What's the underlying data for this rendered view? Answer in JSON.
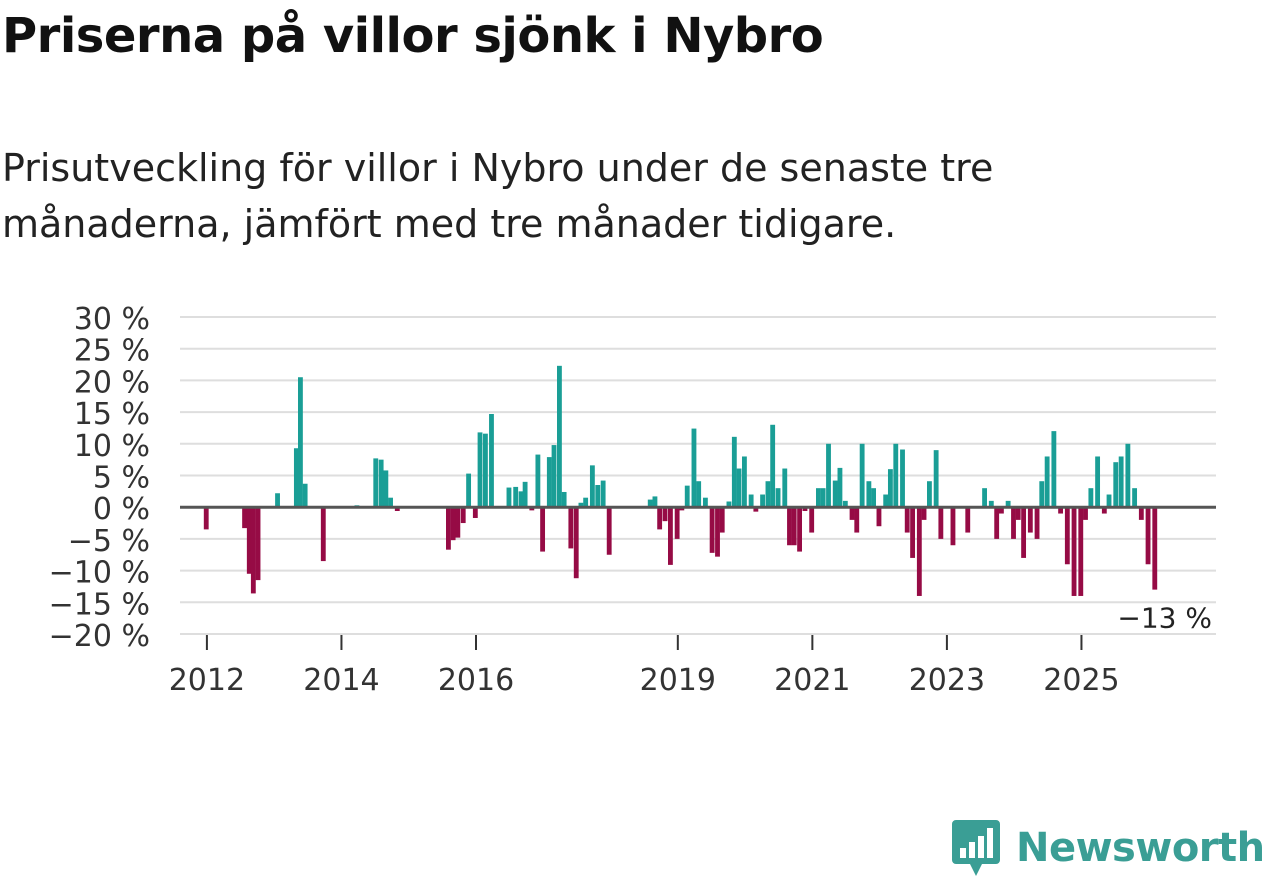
{
  "title": "Priserna på villor sjönk i Nybro",
  "subtitle": "Prisutveckling för villor i Nybro under de senaste tre månaderna, jämfört med tre månader tidigare.",
  "brand": {
    "name": "Newsworthy",
    "color": "#3a9e95",
    "icon": "newsworthy-bar-chart-icon"
  },
  "colors": {
    "positive": "#1a9e96",
    "negative": "#960b45",
    "grid": "#dedede",
    "zero_line": "#555555"
  },
  "chart_data": {
    "type": "bar",
    "title": "Priserna på villor sjönk i Nybro",
    "xlabel": "",
    "ylabel": "",
    "ylim": [
      -20,
      30
    ],
    "yticks": [
      {
        "value": 30,
        "label": "30 %"
      },
      {
        "value": 25,
        "label": "25 %"
      },
      {
        "value": 20,
        "label": "20 %"
      },
      {
        "value": 15,
        "label": "15 %"
      },
      {
        "value": 10,
        "label": "10 %"
      },
      {
        "value": 5,
        "label": "5 %"
      },
      {
        "value": 0,
        "label": "0 %"
      },
      {
        "value": -5,
        "label": "−5 %"
      },
      {
        "value": -10,
        "label": "−10 %"
      },
      {
        "value": -15,
        "label": "−15 %"
      },
      {
        "value": -20,
        "label": "−20 %"
      }
    ],
    "xlim": [
      2011.6,
      2027.0
    ],
    "xticks": [
      {
        "value": 2012.0,
        "label": "2012"
      },
      {
        "value": 2014.0,
        "label": "2014"
      },
      {
        "value": 2016.0,
        "label": "2016"
      },
      {
        "value": 2019.0,
        "label": "2019"
      },
      {
        "value": 2021.0,
        "label": "2021"
      },
      {
        "value": 2023.0,
        "label": "2023"
      },
      {
        "value": 2025.0,
        "label": "2025"
      }
    ],
    "bar_width_years": 0.072,
    "end_label": "−13 %",
    "series": [
      {
        "name": "Prisutveckling",
        "points": [
          {
            "x": 2011.99,
            "y": -3.5
          },
          {
            "x": 2012.56,
            "y": -3.3
          },
          {
            "x": 2012.63,
            "y": -10.5
          },
          {
            "x": 2012.69,
            "y": -13.6
          },
          {
            "x": 2012.76,
            "y": -11.5
          },
          {
            "x": 2013.05,
            "y": 2.2
          },
          {
            "x": 2013.33,
            "y": 9.3
          },
          {
            "x": 2013.39,
            "y": 20.5
          },
          {
            "x": 2013.46,
            "y": 3.7
          },
          {
            "x": 2013.73,
            "y": -8.5
          },
          {
            "x": 2014.23,
            "y": 0.3
          },
          {
            "x": 2014.51,
            "y": 7.7
          },
          {
            "x": 2014.59,
            "y": 7.5
          },
          {
            "x": 2014.66,
            "y": 5.8
          },
          {
            "x": 2014.73,
            "y": 1.5
          },
          {
            "x": 2014.83,
            "y": -0.6
          },
          {
            "x": 2015.59,
            "y": -6.7
          },
          {
            "x": 2015.66,
            "y": -5.2
          },
          {
            "x": 2015.73,
            "y": -4.8
          },
          {
            "x": 2015.81,
            "y": -2.5
          },
          {
            "x": 2015.89,
            "y": 5.3
          },
          {
            "x": 2015.99,
            "y": -1.7
          },
          {
            "x": 2016.06,
            "y": 11.8
          },
          {
            "x": 2016.14,
            "y": 11.6
          },
          {
            "x": 2016.23,
            "y": 14.7
          },
          {
            "x": 2016.49,
            "y": 3.1
          },
          {
            "x": 2016.59,
            "y": 3.2
          },
          {
            "x": 2016.67,
            "y": 2.5
          },
          {
            "x": 2016.73,
            "y": 4.0
          },
          {
            "x": 2016.83,
            "y": -0.5
          },
          {
            "x": 2016.92,
            "y": 8.3
          },
          {
            "x": 2016.99,
            "y": -7.0
          },
          {
            "x": 2017.09,
            "y": 7.9
          },
          {
            "x": 2017.16,
            "y": 9.8
          },
          {
            "x": 2017.24,
            "y": 22.3
          },
          {
            "x": 2017.31,
            "y": 2.4
          },
          {
            "x": 2017.41,
            "y": -6.5
          },
          {
            "x": 2017.49,
            "y": -11.2
          },
          {
            "x": 2017.56,
            "y": 0.7
          },
          {
            "x": 2017.63,
            "y": 1.5
          },
          {
            "x": 2017.73,
            "y": 6.6
          },
          {
            "x": 2017.81,
            "y": 3.5
          },
          {
            "x": 2017.89,
            "y": 4.2
          },
          {
            "x": 2017.98,
            "y": -7.5
          },
          {
            "x": 2018.59,
            "y": 1.2
          },
          {
            "x": 2018.66,
            "y": 1.7
          },
          {
            "x": 2018.73,
            "y": -3.5
          },
          {
            "x": 2018.81,
            "y": -2.2
          },
          {
            "x": 2018.89,
            "y": -9.1
          },
          {
            "x": 2018.99,
            "y": -5.0
          },
          {
            "x": 2019.06,
            "y": -0.5
          },
          {
            "x": 2019.14,
            "y": 3.4
          },
          {
            "x": 2019.24,
            "y": 12.4
          },
          {
            "x": 2019.31,
            "y": 4.1
          },
          {
            "x": 2019.41,
            "y": 1.5
          },
          {
            "x": 2019.51,
            "y": -7.2
          },
          {
            "x": 2019.59,
            "y": -7.8
          },
          {
            "x": 2019.66,
            "y": -4.0
          },
          {
            "x": 2019.76,
            "y": 0.9
          },
          {
            "x": 2019.84,
            "y": 11.1
          },
          {
            "x": 2019.91,
            "y": 6.1
          },
          {
            "x": 2019.99,
            "y": 8.0
          },
          {
            "x": 2020.09,
            "y": 2.0
          },
          {
            "x": 2020.16,
            "y": -0.7
          },
          {
            "x": 2020.26,
            "y": 2.0
          },
          {
            "x": 2020.34,
            "y": 4.1
          },
          {
            "x": 2020.41,
            "y": 13.0
          },
          {
            "x": 2020.49,
            "y": 3.0
          },
          {
            "x": 2020.59,
            "y": 6.1
          },
          {
            "x": 2020.66,
            "y": -6.0
          },
          {
            "x": 2020.73,
            "y": -6.0
          },
          {
            "x": 2020.81,
            "y": -7.0
          },
          {
            "x": 2020.89,
            "y": -0.6
          },
          {
            "x": 2020.99,
            "y": -4.0
          },
          {
            "x": 2021.09,
            "y": 3.0
          },
          {
            "x": 2021.16,
            "y": 3.0
          },
          {
            "x": 2021.24,
            "y": 10.0
          },
          {
            "x": 2021.34,
            "y": 4.2
          },
          {
            "x": 2021.41,
            "y": 6.2
          },
          {
            "x": 2021.49,
            "y": 1.0
          },
          {
            "x": 2021.59,
            "y": -2.0
          },
          {
            "x": 2021.66,
            "y": -4.0
          },
          {
            "x": 2021.74,
            "y": 10.0
          },
          {
            "x": 2021.84,
            "y": 4.1
          },
          {
            "x": 2021.91,
            "y": 3.0
          },
          {
            "x": 2021.99,
            "y": -3.0
          },
          {
            "x": 2022.09,
            "y": 2.0
          },
          {
            "x": 2022.16,
            "y": 6.0
          },
          {
            "x": 2022.24,
            "y": 10.0
          },
          {
            "x": 2022.34,
            "y": 9.1
          },
          {
            "x": 2022.41,
            "y": -4.0
          },
          {
            "x": 2022.49,
            "y": -8.0
          },
          {
            "x": 2022.59,
            "y": -14.0
          },
          {
            "x": 2022.66,
            "y": -2.0
          },
          {
            "x": 2022.74,
            "y": 4.1
          },
          {
            "x": 2022.84,
            "y": 9.0
          },
          {
            "x": 2022.91,
            "y": -5.0
          },
          {
            "x": 2023.09,
            "y": -6.0
          },
          {
            "x": 2023.31,
            "y": -4.0
          },
          {
            "x": 2023.56,
            "y": 3.0
          },
          {
            "x": 2023.66,
            "y": 1.0
          },
          {
            "x": 2023.74,
            "y": -5.0
          },
          {
            "x": 2023.81,
            "y": -1.0
          },
          {
            "x": 2023.91,
            "y": 1.0
          },
          {
            "x": 2023.99,
            "y": -5.0
          },
          {
            "x": 2024.06,
            "y": -2.0
          },
          {
            "x": 2024.14,
            "y": -8.0
          },
          {
            "x": 2024.24,
            "y": -4.0
          },
          {
            "x": 2024.34,
            "y": -5.0
          },
          {
            "x": 2024.41,
            "y": 4.1
          },
          {
            "x": 2024.49,
            "y": 8.0
          },
          {
            "x": 2024.59,
            "y": 12.0
          },
          {
            "x": 2024.69,
            "y": -1.0
          },
          {
            "x": 2024.79,
            "y": -9.0
          },
          {
            "x": 2024.89,
            "y": -14.0
          },
          {
            "x": 2024.99,
            "y": -14.0
          },
          {
            "x": 2025.06,
            "y": -2.0
          },
          {
            "x": 2025.14,
            "y": 3.0
          },
          {
            "x": 2025.24,
            "y": 8.0
          },
          {
            "x": 2025.34,
            "y": -1.0
          },
          {
            "x": 2025.41,
            "y": 2.0
          },
          {
            "x": 2025.51,
            "y": 7.1
          },
          {
            "x": 2025.59,
            "y": 8.0
          },
          {
            "x": 2025.69,
            "y": 10.0
          },
          {
            "x": 2025.79,
            "y": 3.0
          },
          {
            "x": 2025.89,
            "y": -2.0
          },
          {
            "x": 2025.99,
            "y": -9.0
          },
          {
            "x": 2026.09,
            "y": -13.0
          }
        ]
      }
    ]
  }
}
